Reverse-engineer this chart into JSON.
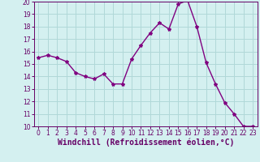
{
  "x": [
    0,
    1,
    2,
    3,
    4,
    5,
    6,
    7,
    8,
    9,
    10,
    11,
    12,
    13,
    14,
    15,
    16,
    17,
    18,
    19,
    20,
    21,
    22,
    23
  ],
  "y": [
    15.5,
    15.7,
    15.5,
    15.2,
    14.3,
    14.0,
    13.8,
    14.2,
    13.4,
    13.4,
    15.4,
    16.5,
    17.5,
    18.3,
    17.8,
    19.8,
    20.1,
    18.0,
    15.1,
    13.4,
    11.9,
    11.0,
    10.0,
    10.0
  ],
  "line_color": "#800080",
  "marker": "*",
  "marker_size": 3,
  "xlim": [
    -0.5,
    23.5
  ],
  "ylim": [
    10,
    20
  ],
  "yticks": [
    10,
    11,
    12,
    13,
    14,
    15,
    16,
    17,
    18,
    19,
    20
  ],
  "xticks": [
    0,
    1,
    2,
    3,
    4,
    5,
    6,
    7,
    8,
    9,
    10,
    11,
    12,
    13,
    14,
    15,
    16,
    17,
    18,
    19,
    20,
    21,
    22,
    23
  ],
  "xlabel": "Windchill (Refroidissement éolien,°C)",
  "background_color": "#d4f0f0",
  "grid_color": "#b0d8d8",
  "tick_color": "#660066",
  "tick_fontsize": 5.5,
  "xlabel_fontsize": 7.0,
  "line_width": 1.0
}
